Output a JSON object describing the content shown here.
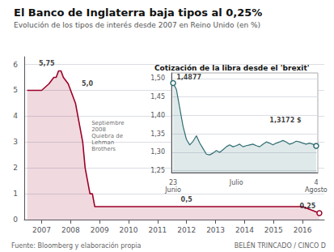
{
  "chart_data": [
    {
      "type": "line",
      "title": "El Banco de Inglaterra baja tipos al 0,25%",
      "subtitle": "Evolución de los tipos de interés desde 2007 en Reino Unido (en %)",
      "x": [
        2006.5,
        2007.0,
        2007.25,
        2007.42,
        2007.5,
        2007.583,
        2007.667,
        2007.75,
        2007.917,
        2008.0,
        2008.167,
        2008.25,
        2008.417,
        2008.5,
        2008.583,
        2008.667,
        2008.75,
        2008.833,
        2008.917,
        2009.0,
        2009.083,
        2009.25,
        2010.0,
        2011.0,
        2012.0,
        2013.0,
        2014.0,
        2015.0,
        2016.0,
        2016.58
      ],
      "values": [
        5.0,
        5.0,
        5.25,
        5.5,
        5.5,
        5.75,
        5.75,
        5.5,
        5.25,
        5.0,
        4.5,
        4.0,
        3.0,
        2.0,
        1.5,
        1.0,
        1.0,
        0.5,
        0.5,
        0.5,
        0.5,
        0.5,
        0.5,
        0.5,
        0.5,
        0.5,
        0.5,
        0.5,
        0.5,
        0.25
      ],
      "color": "#9B0028",
      "marker": "circle",
      "xlim": [
        2006.4,
        2016.75
      ],
      "xticks": [
        2007,
        2008,
        2009,
        2010,
        2011,
        2012,
        2013,
        2014,
        2015,
        2016
      ],
      "ylim": [
        0,
        6.3
      ],
      "yticks": [
        0,
        1,
        2,
        3,
        4,
        5,
        6
      ],
      "grid": true,
      "annotations": [
        {
          "text": "5,75",
          "x": 2006.9,
          "y": 5.88
        },
        {
          "text": "5,0",
          "x": 2008.38,
          "y": 5.08
        },
        {
          "text": "0,5",
          "x": 2011.8,
          "y": 0.6
        },
        {
          "text": "0,25",
          "x": 2015.9,
          "y": 0.35
        },
        {
          "text": "Septiembre\n2008\nQuiebra de\nLehman\nBrothers",
          "x": 2008.72,
          "y": 3.85
        },
        {
          "text": "Fuente: Bloomberg y elaboración propia"
        },
        {
          "text": "BELÉN TRINCADO / CINCO D"
        }
      ]
    },
    {
      "type": "line",
      "title": "Cotización de la libra desde el 'brexit'",
      "categories": [
        "23\nJunio",
        null,
        null,
        null,
        null,
        null,
        null,
        null,
        null,
        null,
        null,
        null,
        null,
        null,
        null,
        null,
        null,
        null,
        null,
        "Julio",
        null,
        null,
        null,
        null,
        null,
        null,
        null,
        null,
        null,
        null,
        null,
        null,
        null,
        null,
        null,
        null,
        null,
        null,
        null,
        null,
        null,
        null,
        null,
        "4\nAgosto"
      ],
      "values": [
        1.4877,
        1.47,
        1.42,
        1.37,
        1.335,
        1.32,
        1.33,
        1.345,
        1.325,
        1.31,
        1.295,
        1.293,
        1.298,
        1.305,
        1.3,
        1.307,
        1.315,
        1.32,
        1.315,
        1.318,
        1.322,
        1.315,
        1.318,
        1.32,
        1.322,
        1.318,
        1.315,
        1.322,
        1.328,
        1.325,
        1.32,
        1.325,
        1.328,
        1.332,
        1.328,
        1.322,
        1.325,
        1.33,
        1.328,
        1.325,
        1.322,
        1.325,
        1.322,
        1.3172
      ],
      "color": "#2e6d72",
      "marker": "circle",
      "ylim": [
        1.245,
        1.515
      ],
      "yticks": [
        {
          "value": 1.25,
          "label": "1,25"
        },
        {
          "value": 1.3,
          "label": "1,30"
        },
        {
          "value": 1.35,
          "label": "1,35"
        },
        {
          "value": 1.4,
          "label": "1,40"
        },
        {
          "value": 1.45,
          "label": "1,45"
        },
        {
          "value": 1.5,
          "label": "1,50"
        }
      ],
      "grid": true,
      "annotations": [
        {
          "text": "1,4877",
          "x": 1,
          "y": 1.493
        },
        {
          "text": "1,3172 $",
          "x": 29,
          "y": 1.375
        }
      ]
    }
  ]
}
